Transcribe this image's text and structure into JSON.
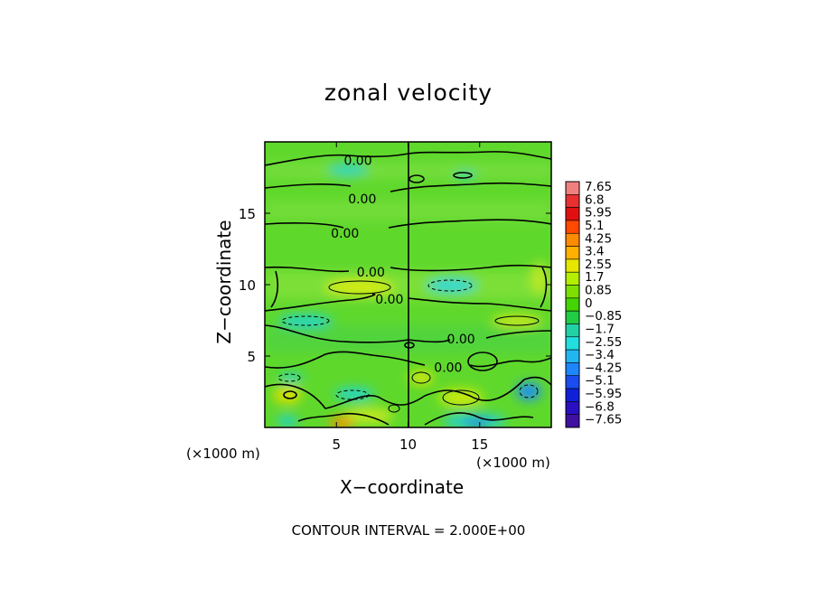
{
  "chart_data": {
    "type": "heatmap",
    "title": "zonal velocity",
    "xlabel": "X−coordinate",
    "ylabel": "Z−coordinate",
    "x_unit_left": "(×1000 m)",
    "x_unit_right": "(×1000 m)",
    "xlim": [
      0,
      20
    ],
    "ylim": [
      0,
      20
    ],
    "x_ticks": [
      5,
      10,
      15
    ],
    "y_ticks": [
      5,
      10,
      15
    ],
    "contour_label": "0.00",
    "contour_interval_text": "CONTOUR INTERVAL = 2.000E+00",
    "colorbar": {
      "labels": [
        "7.65",
        "6.8",
        "5.95",
        "5.1",
        "4.25",
        "3.4",
        "2.55",
        "1.7",
        "0.85",
        "0",
        "−0.85",
        "−1.7",
        "−2.55",
        "−3.4",
        "−4.25",
        "−5.1",
        "−5.95",
        "−6.8",
        "−7.65"
      ],
      "colors": [
        "#f08080",
        "#e83030",
        "#e01010",
        "#ff4a00",
        "#ff8c00",
        "#ffb000",
        "#e6e600",
        "#b4ee00",
        "#7ee000",
        "#44d400",
        "#22cc44",
        "#22d2a6",
        "#22dede",
        "#22b6f0",
        "#1e86ff",
        "#1a4cf0",
        "#1020d8",
        "#2a10c0",
        "#4010a0"
      ]
    },
    "contour_levels_shown": [
      0.0
    ],
    "contour_label_positions_data": [
      [
        6.5,
        18.7
      ],
      [
        6.8,
        16.0
      ],
      [
        5.6,
        13.6
      ],
      [
        7.4,
        10.9
      ],
      [
        8.7,
        9.0
      ],
      [
        13.7,
        6.2
      ],
      [
        12.8,
        4.2
      ]
    ]
  }
}
